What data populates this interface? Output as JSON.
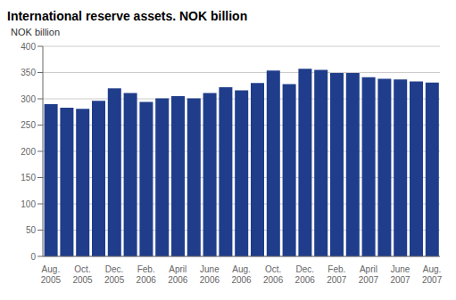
{
  "chart_data": {
    "type": "bar",
    "title": "International reserve assets. NOK billion",
    "ylabel": "NOK billion",
    "categories": [
      "Aug.\n2005",
      null,
      "Oct.\n2005",
      null,
      "Dec.\n2005",
      null,
      "Feb.\n2006",
      null,
      "April\n2006",
      null,
      "June\n2006",
      null,
      "Aug.\n2006",
      null,
      "Oct.\n2006",
      null,
      "Dec.\n2006",
      null,
      "Feb.\n2007",
      null,
      "April\n2007",
      null,
      "June\n2007",
      null,
      "Aug.\n2007"
    ],
    "values": [
      290,
      283,
      281,
      296,
      320,
      311,
      294,
      301,
      305,
      301,
      311,
      322,
      316,
      330,
      354,
      328,
      357,
      355,
      349,
      349,
      341,
      338,
      337,
      333,
      331
    ],
    "color": "#1f3d8a",
    "ylim": [
      0,
      400
    ],
    "yticks": [
      0,
      50,
      100,
      150,
      200,
      250,
      300,
      350,
      400
    ],
    "grid": true
  }
}
